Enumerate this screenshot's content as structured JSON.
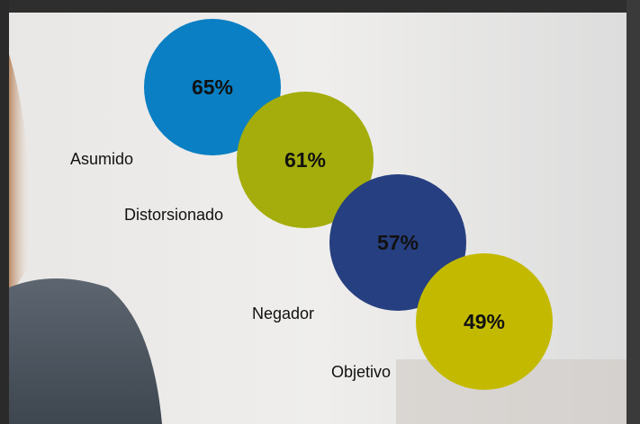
{
  "chart_data": {
    "type": "bubble",
    "categories": [
      "Asumido",
      "Distorsionado",
      "Negador",
      "Objetivo"
    ],
    "values": [
      65,
      61,
      57,
      49
    ],
    "value_labels": [
      "65%",
      "61%",
      "57%",
      "49%"
    ],
    "colors": [
      "#0a7fc3",
      "#a4ad0b",
      "#263f80",
      "#c3ba00"
    ]
  }
}
